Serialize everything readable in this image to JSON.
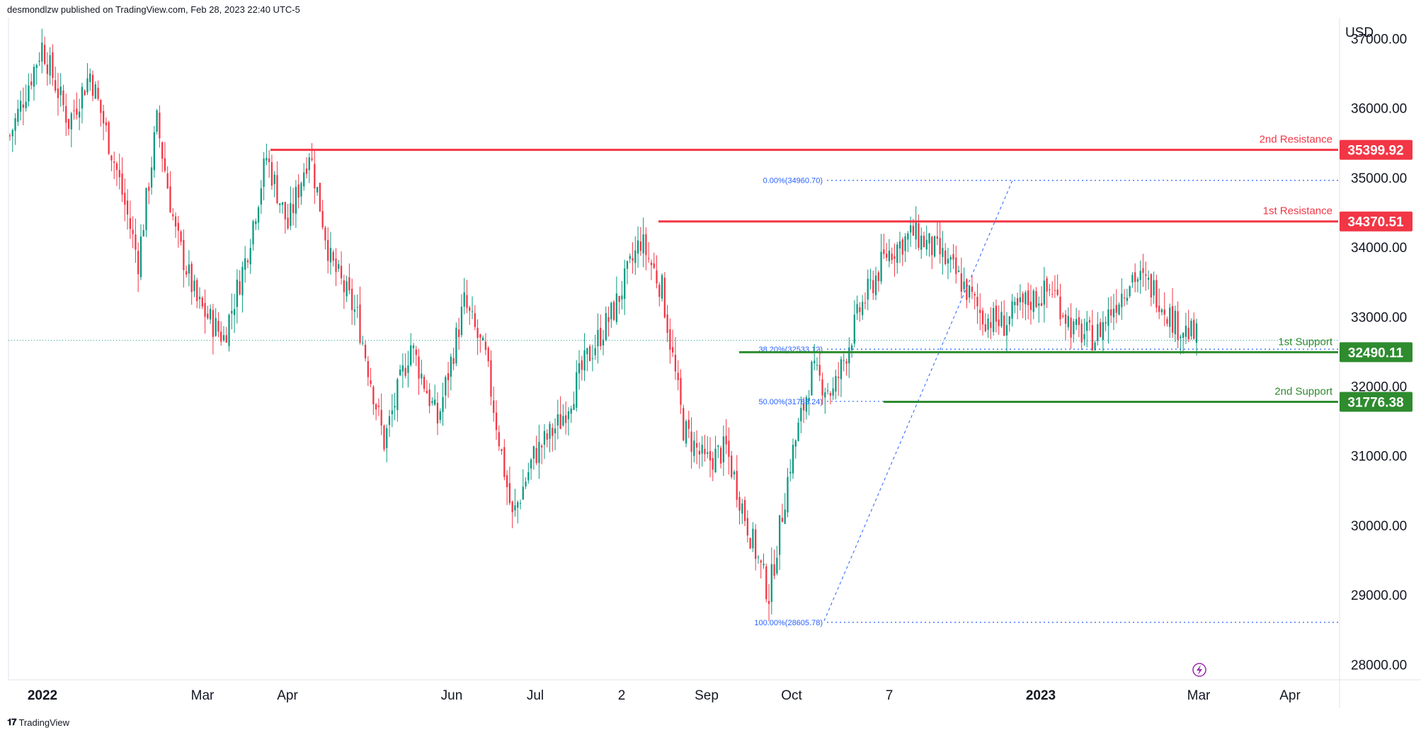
{
  "attribution": "desmondlzw published on TradingView.com, Feb 28, 2023 22:40 UTC-5",
  "footer": {
    "logo_text": "TradingView"
  },
  "colors": {
    "bull": "#089981",
    "bear": "#f23645",
    "resistance": "#f23645",
    "support": "#2e8b2e",
    "fib": "#2962ff",
    "grid_text": "#131722"
  },
  "chart_data": {
    "type": "candlestick",
    "currency": "USD",
    "ylim": [
      27800,
      37300
    ],
    "y_ticks": [
      28000,
      29000,
      30000,
      31000,
      32000,
      33000,
      34000,
      35000,
      36000,
      37000
    ],
    "y_tick_labels": [
      "28000.00",
      "29000.00",
      "30000.00",
      "31000.00",
      "32000.00",
      "33000.00",
      "34000.00",
      "35000.00",
      "36000.00",
      "37000.00"
    ],
    "x_ticks": [
      {
        "label": "2022",
        "bold": true
      },
      {
        "label": "Mar",
        "bold": false
      },
      {
        "label": "Apr",
        "bold": false
      },
      {
        "label": "Jun",
        "bold": false
      },
      {
        "label": "Jul",
        "bold": false
      },
      {
        "label": "2",
        "bold": false
      },
      {
        "label": "Sep",
        "bold": false
      },
      {
        "label": "Oct",
        "bold": false
      },
      {
        "label": "7",
        "bold": false
      },
      {
        "label": "2023",
        "bold": true
      },
      {
        "label": "Mar",
        "bold": false
      },
      {
        "label": "Apr",
        "bold": false
      }
    ],
    "levels": [
      {
        "name": "2nd Resistance",
        "value": 35399.92,
        "label": "35399.92",
        "kind": "resistance"
      },
      {
        "name": "1st Resistance",
        "value": 34370.51,
        "label": "34370.51",
        "kind": "resistance"
      },
      {
        "name": "1st Support",
        "value": 32490.11,
        "label": "32490.11",
        "kind": "support"
      },
      {
        "name": "2nd Support",
        "value": 31776.38,
        "label": "31776.38",
        "kind": "support"
      }
    ],
    "fib_levels": [
      {
        "label": "0.00%(34960.70)",
        "value": 34960.7
      },
      {
        "label": "38.20%(32533.12)",
        "value": 32533.12
      },
      {
        "label": "50.00%(31783.24)",
        "value": 31783.24
      },
      {
        "label": "100.00%(28605.78)",
        "value": 28605.78
      }
    ],
    "current_price": 32660,
    "close_path": [
      [
        0,
        35600
      ],
      [
        12,
        36900
      ],
      [
        22,
        35800
      ],
      [
        30,
        36500
      ],
      [
        40,
        35100
      ],
      [
        48,
        33800
      ],
      [
        55,
        35800
      ],
      [
        62,
        34200
      ],
      [
        70,
        33200
      ],
      [
        80,
        32700
      ],
      [
        88,
        33800
      ],
      [
        96,
        35300
      ],
      [
        104,
        34300
      ],
      [
        112,
        35400
      ],
      [
        120,
        33800
      ],
      [
        130,
        33000
      ],
      [
        140,
        31200
      ],
      [
        150,
        32600
      ],
      [
        160,
        31500
      ],
      [
        170,
        33200
      ],
      [
        178,
        32400
      ],
      [
        188,
        30100
      ],
      [
        196,
        31000
      ],
      [
        206,
        31500
      ],
      [
        216,
        32400
      ],
      [
        226,
        33100
      ],
      [
        236,
        34100
      ],
      [
        244,
        33400
      ],
      [
        252,
        31400
      ],
      [
        260,
        30900
      ],
      [
        268,
        31100
      ],
      [
        276,
        30000
      ],
      [
        284,
        29000
      ],
      [
        292,
        30900
      ],
      [
        300,
        32200
      ],
      [
        308,
        31900
      ],
      [
        318,
        33100
      ],
      [
        328,
        33900
      ],
      [
        338,
        34200
      ],
      [
        348,
        33900
      ],
      [
        356,
        33500
      ],
      [
        364,
        33000
      ],
      [
        372,
        32900
      ],
      [
        380,
        33200
      ],
      [
        390,
        33400
      ],
      [
        398,
        32800
      ],
      [
        406,
        32700
      ],
      [
        412,
        33100
      ],
      [
        420,
        33600
      ],
      [
        428,
        33400
      ],
      [
        436,
        32900
      ],
      [
        444,
        32700
      ]
    ]
  }
}
